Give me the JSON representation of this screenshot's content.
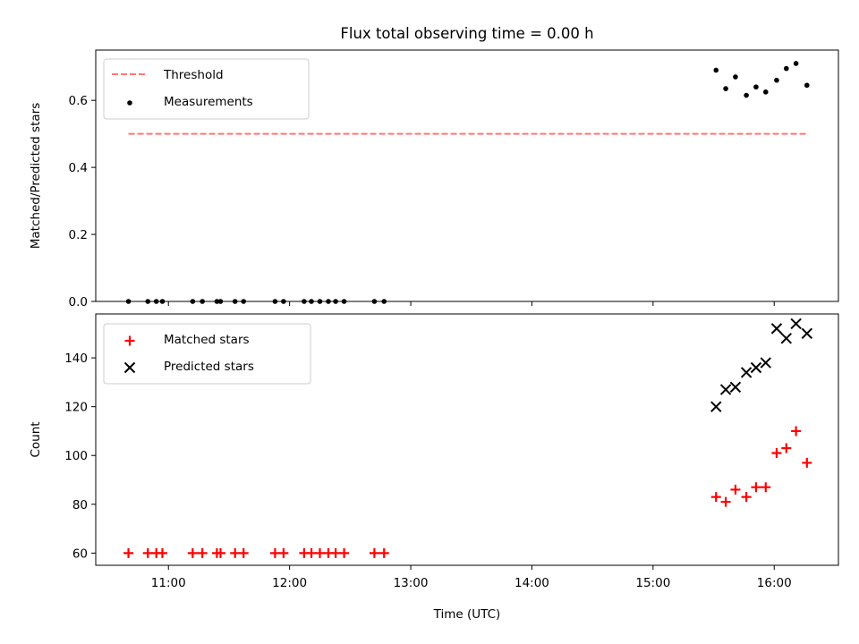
{
  "chart_data": [
    {
      "type": "scatter",
      "title": "Flux total observing time = 0.00 h",
      "xlabel": "",
      "ylabel": "Matched/Predicted stars",
      "x_unit": "hours UTC",
      "xlim": [
        10.4,
        16.53
      ],
      "ylim": [
        0,
        0.75
      ],
      "yticks": [
        0.0,
        0.2,
        0.4,
        0.6
      ],
      "ytick_labels": [
        "0.0",
        "0.2",
        "0.4",
        "0.6"
      ],
      "xticks": [
        11,
        12,
        13,
        14,
        15,
        16
      ],
      "show_xtick_labels": false,
      "grid": false,
      "legend_position": "upper-left",
      "series": [
        {
          "name": "Threshold",
          "kind": "line",
          "style": "dashed",
          "color": "#ff7777",
          "x": [
            10.67,
            16.27
          ],
          "y": [
            0.5,
            0.5
          ]
        },
        {
          "name": "Measurements",
          "kind": "scatter",
          "marker": "dot",
          "color": "#000000",
          "x": [
            10.67,
            10.83,
            10.9,
            10.95,
            11.2,
            11.28,
            11.4,
            11.43,
            11.55,
            11.62,
            11.88,
            11.95,
            12.12,
            12.18,
            12.25,
            12.32,
            12.38,
            12.45,
            12.7,
            12.78,
            15.52,
            15.6,
            15.68,
            15.77,
            15.85,
            15.93,
            16.02,
            16.1,
            16.18,
            16.27
          ],
          "y": [
            0,
            0,
            0,
            0,
            0,
            0,
            0,
            0,
            0,
            0,
            0,
            0,
            0,
            0,
            0,
            0,
            0,
            0,
            0,
            0,
            0.69,
            0.635,
            0.67,
            0.615,
            0.64,
            0.625,
            0.66,
            0.695,
            0.71,
            0.645
          ]
        }
      ]
    },
    {
      "type": "scatter",
      "title": "",
      "xlabel": "Time (UTC)",
      "ylabel": "Count",
      "x_unit": "hours UTC",
      "xlim": [
        10.4,
        16.53
      ],
      "ylim": [
        55,
        158
      ],
      "yticks": [
        60,
        80,
        100,
        120,
        140
      ],
      "ytick_labels": [
        "60",
        "80",
        "100",
        "120",
        "140"
      ],
      "xticks": [
        11,
        12,
        13,
        14,
        15,
        16
      ],
      "xtick_labels": [
        "11:00",
        "12:00",
        "13:00",
        "14:00",
        "15:00",
        "16:00"
      ],
      "show_xtick_labels": true,
      "grid": false,
      "legend_position": "upper-left",
      "series": [
        {
          "name": "Matched stars",
          "kind": "scatter",
          "marker": "plus",
          "color": "#ff0000",
          "x": [
            10.67,
            10.83,
            10.9,
            10.95,
            11.2,
            11.28,
            11.4,
            11.43,
            11.55,
            11.62,
            11.88,
            11.95,
            12.12,
            12.18,
            12.25,
            12.32,
            12.38,
            12.45,
            12.7,
            12.78,
            15.52,
            15.6,
            15.68,
            15.77,
            15.85,
            15.93,
            16.02,
            16.1,
            16.18,
            16.27
          ],
          "y": [
            60,
            60,
            60,
            60,
            60,
            60,
            60,
            60,
            60,
            60,
            60,
            60,
            60,
            60,
            60,
            60,
            60,
            60,
            60,
            60,
            83,
            81,
            86,
            83,
            87,
            87,
            101,
            103,
            110,
            97
          ]
        },
        {
          "name": "Predicted stars",
          "kind": "scatter",
          "marker": "x",
          "color": "#000000",
          "x": [
            15.52,
            15.6,
            15.68,
            15.77,
            15.85,
            15.93,
            16.02,
            16.1,
            16.18,
            16.27
          ],
          "y": [
            120,
            127,
            128,
            134,
            136,
            138,
            152,
            148,
            154,
            150
          ]
        }
      ]
    }
  ]
}
